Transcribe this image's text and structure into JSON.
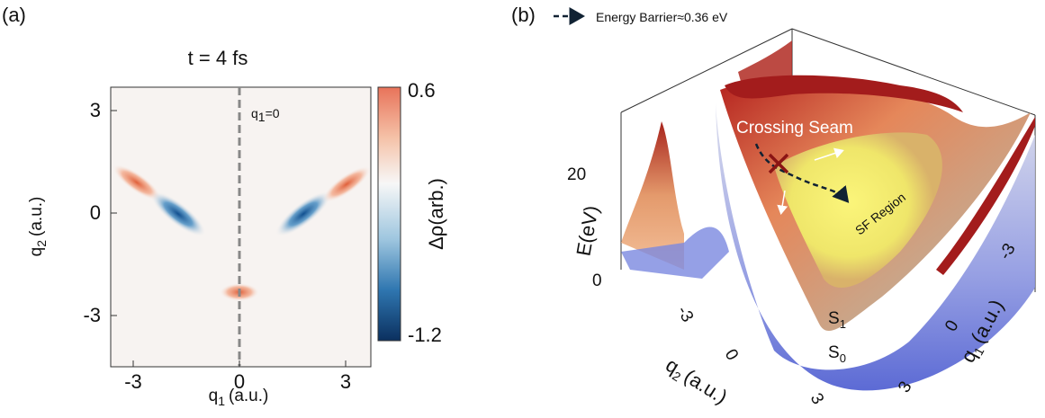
{
  "panel_a": {
    "label": "(a)",
    "title": "t = 4 fs",
    "x_axis": {
      "base": "q",
      "sub": "1",
      "unit": "(a.u.)",
      "ticks": [
        "-3",
        "0",
        "3"
      ]
    },
    "y_axis": {
      "base": "q",
      "sub": "2",
      "unit": "(a.u.)",
      "ticks": [
        "3",
        "0",
        "-3"
      ]
    },
    "annotation": {
      "base": "q",
      "sub": "1",
      "rest": "=0"
    },
    "colorbar": {
      "label": "Δρ(arb.)",
      "ticks": [
        "0.6",
        "-1.2"
      ]
    }
  },
  "panel_b": {
    "label": "(b)",
    "legend": "Energy Barrier≈0.36 eV",
    "annotations": [
      "Crossing Seam",
      "SF Region"
    ],
    "states": [
      {
        "base": "S",
        "sub": "1"
      },
      {
        "base": "S",
        "sub": "0"
      }
    ],
    "z_axis": {
      "label": "E(eV)",
      "ticks": [
        "20",
        "0"
      ]
    },
    "q2_axis": {
      "base": "q",
      "sub": "2",
      "unit": "(a.u.)",
      "ticks": [
        "-3",
        "0",
        "3"
      ]
    },
    "q1_axis": {
      "base": "q",
      "sub": "1",
      "unit": "(a.u.)",
      "ticks": [
        "-3",
        "0",
        "3"
      ]
    }
  }
}
